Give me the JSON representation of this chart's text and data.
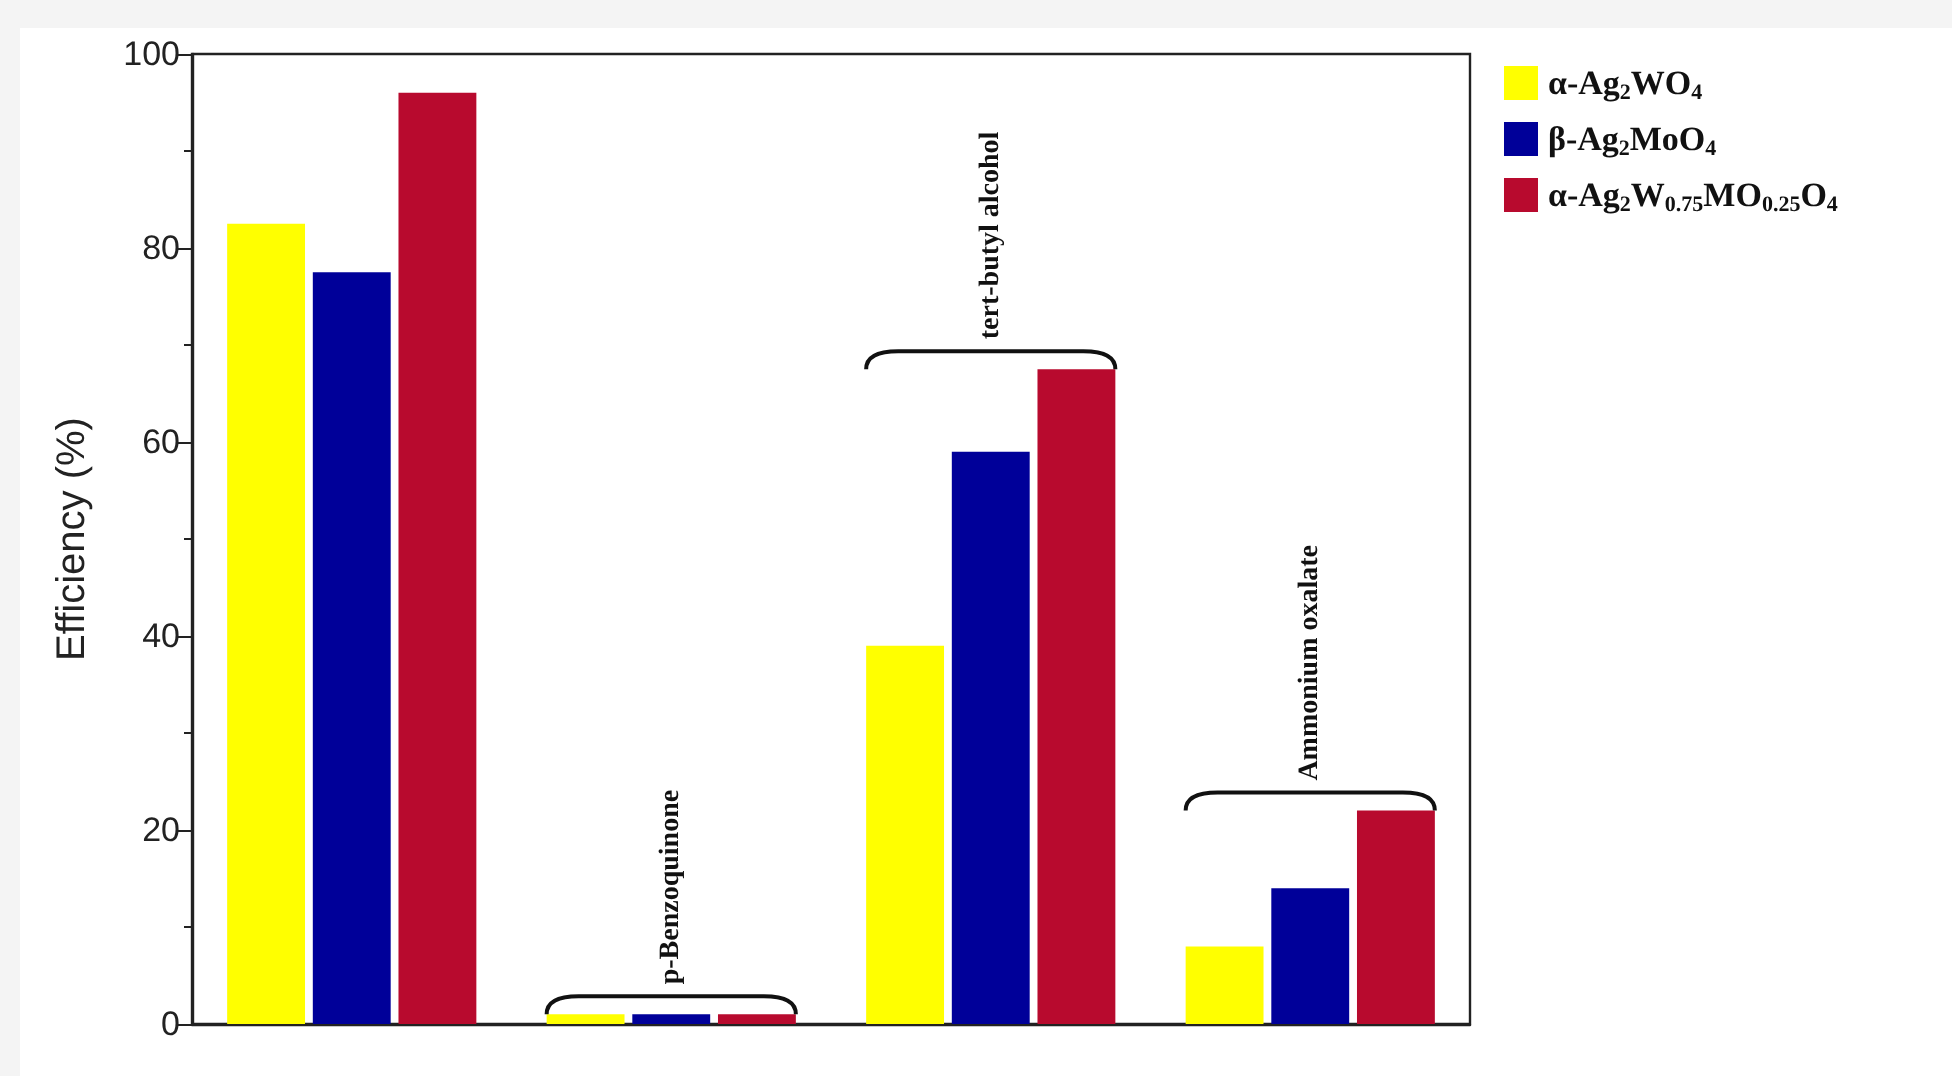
{
  "chart_data": {
    "type": "bar",
    "categories": [
      null,
      "p-Benzoquinone",
      "tert-butyl alcohol",
      "Ammonium oxalate"
    ],
    "ylabel": "Efficiency (%)",
    "ylim": [
      0,
      100
    ],
    "yticks": [
      0,
      {
        "value": 10,
        "label": null
      },
      20,
      {
        "value": 30,
        "label": null
      },
      40,
      {
        "value": 50,
        "label": null
      },
      60,
      {
        "value": 70,
        "label": null
      },
      80,
      {
        "value": 90,
        "label": null
      },
      100
    ],
    "series": [
      {
        "name": "α-Ag$_{2}$WO$_{4}$",
        "color": "#ffff00",
        "values": [
          82.5,
          1,
          39,
          8
        ]
      },
      {
        "name": "β-Ag$_{2}$MoO$_{4}$",
        "color": "#000099",
        "values": [
          77.5,
          1,
          59,
          14
        ]
      },
      {
        "name": "α-Ag$_{2}$W$_{0.75}$MO$_{0.25}$O$_{4}$",
        "color": "#b80a2e",
        "values": [
          96,
          1,
          67.5,
          22
        ]
      }
    ],
    "legend": "right",
    "grid": false
  }
}
